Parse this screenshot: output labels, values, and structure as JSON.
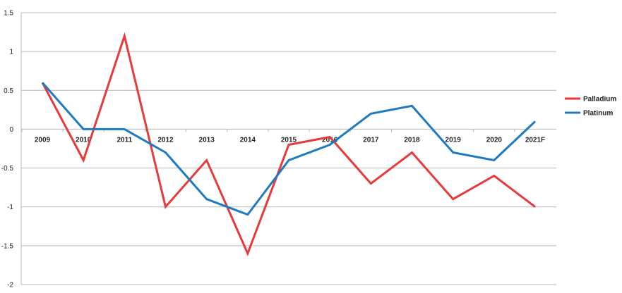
{
  "chart_data": {
    "type": "line",
    "title": "",
    "xlabel": "",
    "ylabel": "",
    "ylim": [
      -2,
      1.5
    ],
    "yticks": [
      1.5,
      1,
      0.5,
      0,
      -0.5,
      -1,
      -1.5,
      -2
    ],
    "ytick_labels": [
      "1.5",
      "1",
      "0.5",
      "0",
      "-0.5",
      "-1",
      "-1.5",
      "-2"
    ],
    "categories": [
      "2009",
      "2010",
      "2011",
      "2012",
      "2013",
      "2014",
      "2015",
      "2016",
      "2017",
      "2018",
      "2019",
      "2020",
      "2021F"
    ],
    "grid": true,
    "legend_position": "right",
    "series": [
      {
        "name": "Palladium",
        "color": "#e8393b",
        "values": [
          0.6,
          -0.4,
          1.2,
          -1.0,
          -0.4,
          -1.6,
          -0.2,
          -0.1,
          -0.7,
          -0.3,
          -0.9,
          -0.6,
          -1.0
        ]
      },
      {
        "name": "Platinum",
        "color": "#1f7bbf",
        "values": [
          0.6,
          0.0,
          0.0,
          -0.3,
          -0.9,
          -1.1,
          -0.4,
          -0.2,
          0.2,
          0.3,
          -0.3,
          -0.4,
          0.1
        ]
      }
    ]
  }
}
